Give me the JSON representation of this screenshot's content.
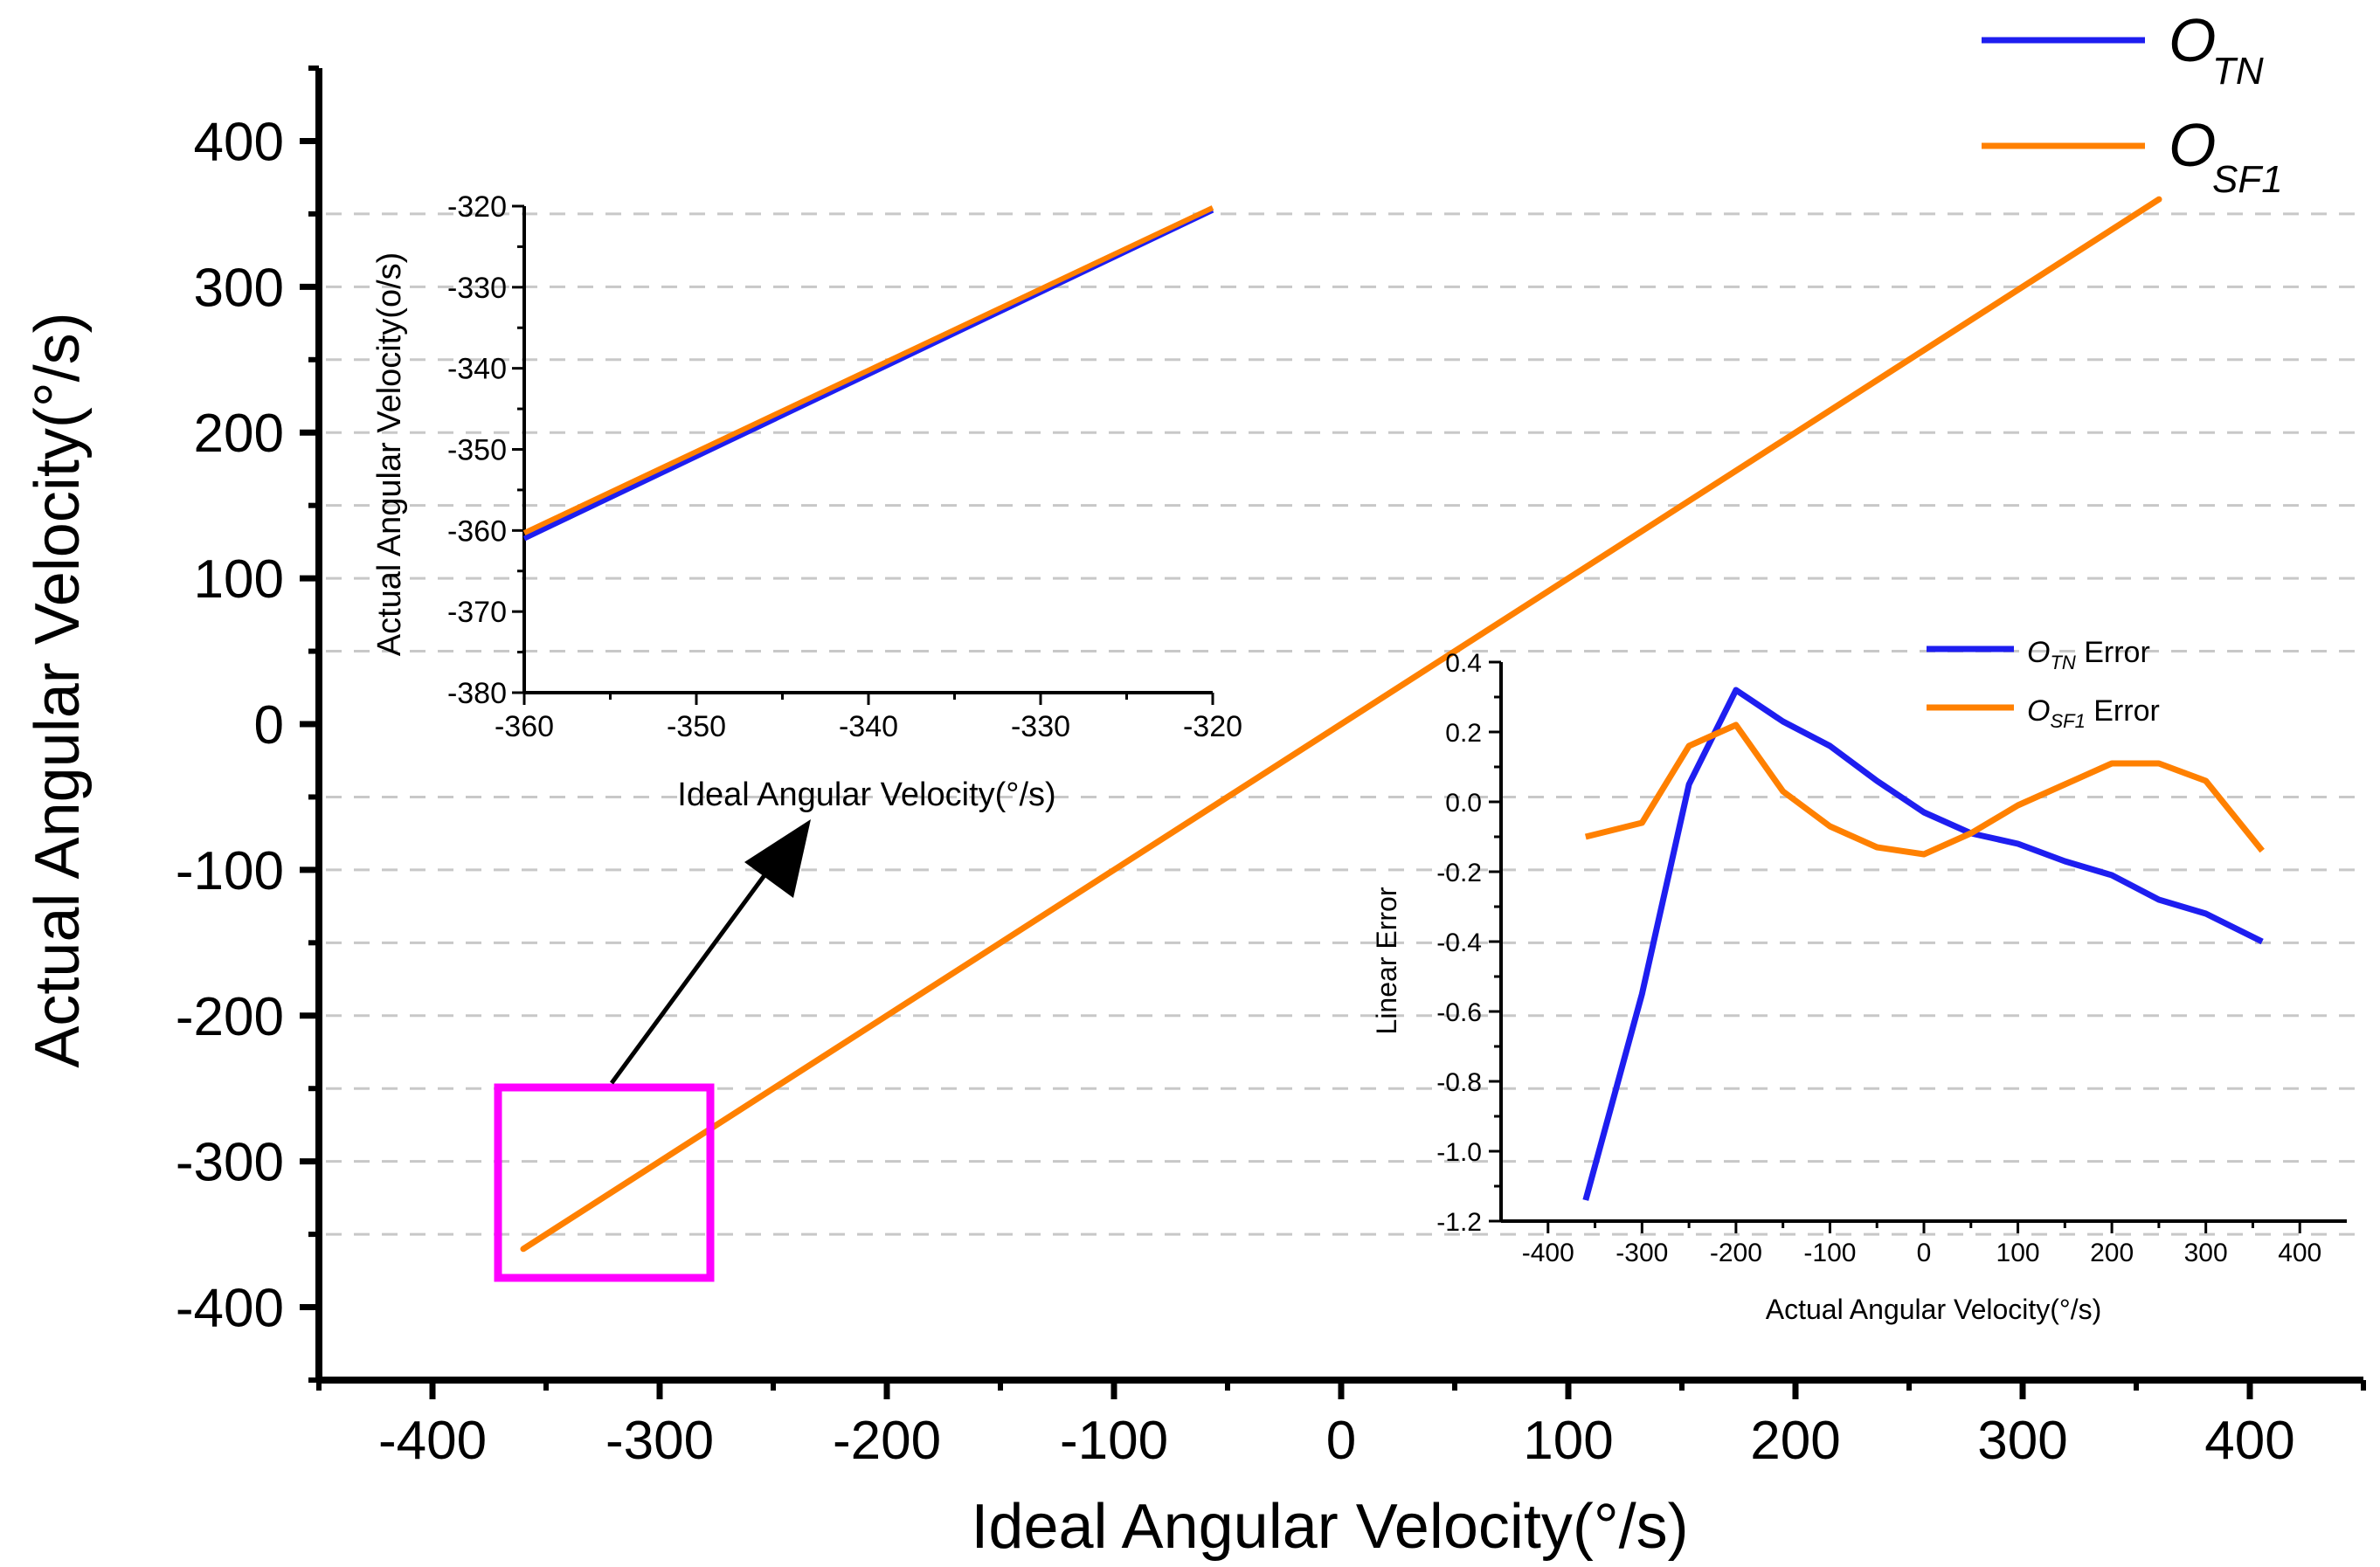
{
  "colors": {
    "otn": "#1e1ef0",
    "osf1": "#ff8000",
    "highlight_box": "#ff00ff",
    "axis": "#000000",
    "gridline": "#c8c8c8"
  },
  "legend_main": {
    "otn_base": "O",
    "otn_sub": "TN",
    "osf1_base": "O",
    "osf1_sub": "SF1"
  },
  "chart_data": [
    {
      "id": "main",
      "type": "line",
      "xlabel": "Ideal Angular Velocity(°/s)",
      "ylabel": "Actual Angular Velocity(°/s)",
      "xlim": [
        -450,
        450
      ],
      "ylim": [
        -450,
        450
      ],
      "xticks": [
        "-400",
        "-300",
        "-200",
        "-100",
        "0",
        "100",
        "200",
        "300",
        "400"
      ],
      "yticks": [
        "400",
        "300",
        "200",
        "100",
        "0",
        "-100",
        "-200",
        "-300",
        "-400"
      ],
      "grid": "dashed horizontal",
      "series": [
        {
          "name": "O_TN",
          "x": [
            -360,
            360
          ],
          "y": [
            -360,
            360
          ]
        },
        {
          "name": "O_SF1",
          "x": [
            -360,
            360
          ],
          "y": [
            -360,
            360
          ]
        }
      ],
      "annotation": "magenta box around x -370 to -280, y -380 to -250 with arrow to zoomed inset"
    },
    {
      "id": "zoom_inset",
      "type": "line",
      "xlabel": "Ideal Angular Velocity(°/s)",
      "ylabel": "Actual Angular Velocity(o/s)",
      "xlim": [
        -360,
        -320
      ],
      "ylim": [
        -380,
        -320
      ],
      "xticks": [
        "-360",
        "-350",
        "-340",
        "-330",
        "-320"
      ],
      "yticks": [
        "-320",
        "-330",
        "-340",
        "-350",
        "-360",
        "-370",
        "-380"
      ],
      "series": [
        {
          "name": "O_TN",
          "x": [
            -360,
            -320
          ],
          "y": [
            -361,
            -320.5
          ]
        },
        {
          "name": "O_SF1",
          "x": [
            -360,
            -320
          ],
          "y": [
            -360.3,
            -320.2
          ]
        }
      ]
    },
    {
      "id": "error_inset",
      "type": "line",
      "xlabel": "Actual Angular Velocity(°/s)",
      "ylabel": "Linear Error",
      "xlim": [
        -450,
        450
      ],
      "ylim": [
        -1.2,
        0.4
      ],
      "xticks": [
        "-400",
        "-300",
        "-200",
        "-100",
        "0",
        "100",
        "200",
        "300",
        "400"
      ],
      "yticks": [
        "0.4",
        "0.2",
        "0.0",
        "-0.2",
        "-0.4",
        "-0.6",
        "-0.8",
        "-1.0",
        "-1.2"
      ],
      "series": [
        {
          "name": "O_TN Error",
          "x": [
            -360,
            -300,
            -250,
            -200,
            -150,
            -100,
            -50,
            0,
            50,
            100,
            150,
            200,
            250,
            300,
            360
          ],
          "y": [
            -1.14,
            -0.55,
            0.05,
            0.32,
            0.23,
            0.16,
            0.06,
            -0.03,
            -0.09,
            -0.12,
            -0.17,
            -0.21,
            -0.28,
            -0.32,
            -0.4
          ]
        },
        {
          "name": "O_SF1 Error",
          "x": [
            -360,
            -300,
            -250,
            -200,
            -150,
            -100,
            -50,
            0,
            50,
            100,
            150,
            200,
            250,
            300,
            360
          ],
          "y": [
            -0.1,
            -0.06,
            0.16,
            0.22,
            0.03,
            -0.07,
            -0.13,
            -0.15,
            -0.09,
            -0.01,
            0.05,
            0.11,
            0.11,
            0.06,
            -0.14
          ]
        }
      ],
      "legend": {
        "otn": {
          "base": "O",
          "sub": "TN",
          "suffix": " Error"
        },
        "osf1": {
          "base": "O",
          "sub": "SF1",
          "suffix": " Error"
        }
      }
    }
  ]
}
